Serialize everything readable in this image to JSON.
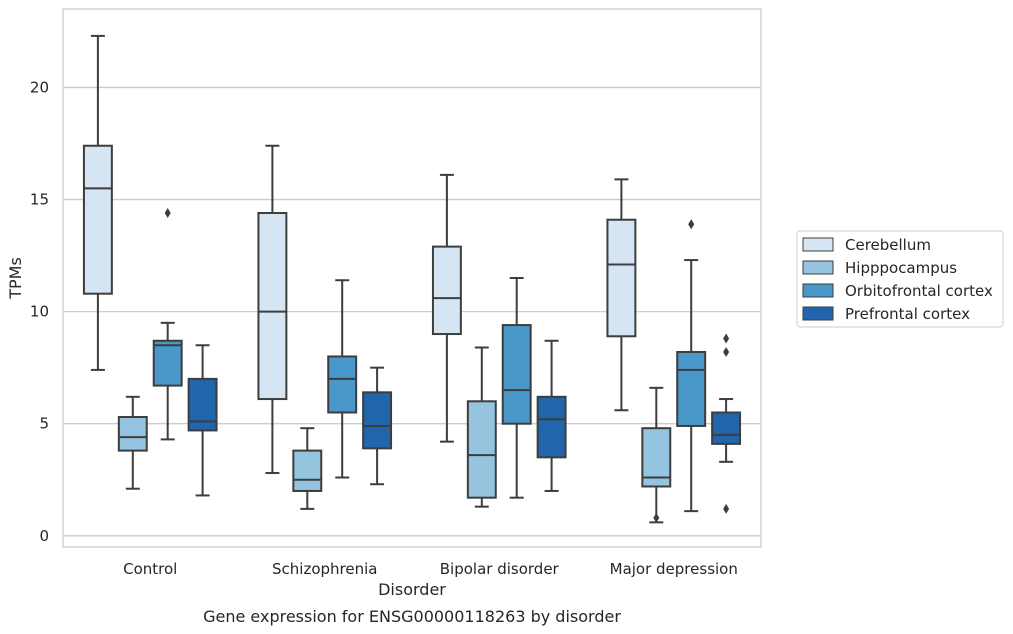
{
  "chart_data": {
    "type": "box",
    "title": "Gene expression for ENSG00000118263 by disorder",
    "xlabel": "Disorder",
    "ylabel": "TPMs",
    "ylim": [
      -0.5,
      23.5
    ],
    "yticks": [
      0,
      5,
      10,
      15,
      20
    ],
    "grid": "horizontal",
    "legend": "right",
    "categories": [
      "Control",
      "Schizophrenia",
      "Bipolar disorder",
      "Major depression"
    ],
    "series": [
      {
        "name": "Cerebellum",
        "color": "#d6e5f4",
        "boxes": [
          {
            "min": 7.4,
            "q1": 10.8,
            "median": 15.5,
            "q3": 17.4,
            "max": 22.3,
            "outliers": []
          },
          {
            "min": 2.8,
            "q1": 6.1,
            "median": 10.0,
            "q3": 14.4,
            "max": 17.4,
            "outliers": []
          },
          {
            "min": 4.2,
            "q1": 9.0,
            "median": 10.6,
            "q3": 12.9,
            "max": 16.1,
            "outliers": []
          },
          {
            "min": 5.6,
            "q1": 8.9,
            "median": 12.1,
            "q3": 14.1,
            "max": 15.9,
            "outliers": []
          }
        ]
      },
      {
        "name": "Hipppocampus",
        "color": "#94c4df",
        "boxes": [
          {
            "min": 2.1,
            "q1": 3.8,
            "median": 4.4,
            "q3": 5.3,
            "max": 6.2,
            "outliers": []
          },
          {
            "min": 1.2,
            "q1": 2.0,
            "median": 2.5,
            "q3": 3.8,
            "max": 4.8,
            "outliers": []
          },
          {
            "min": 1.3,
            "q1": 1.7,
            "median": 3.6,
            "q3": 6.0,
            "max": 8.4,
            "outliers": []
          },
          {
            "min": 0.6,
            "q1": 2.2,
            "median": 2.6,
            "q3": 4.8,
            "max": 6.6,
            "outliers": [
              0.8
            ]
          }
        ]
      },
      {
        "name": "Orbitofrontal cortex",
        "color": "#4a98c9",
        "boxes": [
          {
            "min": 4.3,
            "q1": 6.7,
            "median": 8.5,
            "q3": 8.7,
            "max": 9.5,
            "outliers": [
              14.4
            ]
          },
          {
            "min": 2.6,
            "q1": 5.5,
            "median": 7.0,
            "q3": 8.0,
            "max": 11.4,
            "outliers": []
          },
          {
            "min": 1.7,
            "q1": 5.0,
            "median": 6.5,
            "q3": 9.4,
            "max": 11.5,
            "outliers": []
          },
          {
            "min": 1.1,
            "q1": 4.9,
            "median": 7.4,
            "q3": 8.2,
            "max": 12.3,
            "outliers": [
              13.9
            ]
          }
        ]
      },
      {
        "name": "Prefrontal cortex",
        "color": "#2166ac",
        "boxes": [
          {
            "min": 1.8,
            "q1": 4.7,
            "median": 5.1,
            "q3": 7.0,
            "max": 8.5,
            "outliers": []
          },
          {
            "min": 2.3,
            "q1": 3.9,
            "median": 4.9,
            "q3": 6.4,
            "max": 7.5,
            "outliers": []
          },
          {
            "min": 2.0,
            "q1": 3.5,
            "median": 5.2,
            "q3": 6.2,
            "max": 8.7,
            "outliers": []
          },
          {
            "min": 3.3,
            "q1": 4.1,
            "median": 4.5,
            "q3": 5.5,
            "max": 6.1,
            "outliers": [
              8.8,
              8.2,
              1.2
            ]
          }
        ]
      }
    ]
  }
}
